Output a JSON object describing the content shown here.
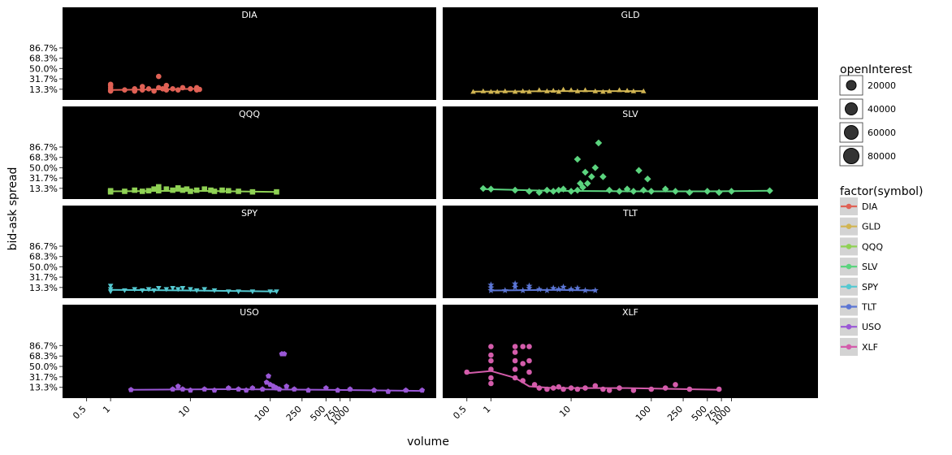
{
  "chart_data": {
    "type": "scatter",
    "xlabel": "volume",
    "ylabel": "bid-ask spread",
    "x_scale": "log10",
    "x_tick_labels": [
      "0.5",
      "1",
      "10",
      "100",
      "250",
      "500",
      "750",
      "1000"
    ],
    "x_tick_values": [
      0.5,
      1,
      10,
      100,
      250,
      500,
      750,
      1000
    ],
    "y_tick_labels": [
      "86.7%",
      "68.3%",
      "50.0%",
      "31.7%",
      "13.3%"
    ],
    "y_tick_values": [
      0.867,
      0.683,
      0.5,
      0.317,
      0.133
    ],
    "ylim": [
      0,
      1.3
    ],
    "legend_size_title": "openInterest",
    "legend_size_entries": [
      "20000",
      "40000",
      "60000",
      "80000"
    ],
    "legend_color_title": "factor(symbol)",
    "panels": [
      {
        "name": "DIA",
        "color": "#e06155",
        "shape": "circle",
        "points": [
          [
            1,
            0.12
          ],
          [
            1,
            0.16
          ],
          [
            1,
            0.2
          ],
          [
            1,
            0.22
          ],
          [
            1,
            0.1
          ],
          [
            1.5,
            0.12
          ],
          [
            2,
            0.14
          ],
          [
            2,
            0.1
          ],
          [
            2.5,
            0.18
          ],
          [
            2.5,
            0.12
          ],
          [
            3,
            0.14
          ],
          [
            3.5,
            0.1
          ],
          [
            4,
            0.36
          ],
          [
            4,
            0.16
          ],
          [
            4.5,
            0.14
          ],
          [
            5,
            0.2
          ],
          [
            5,
            0.12
          ],
          [
            6,
            0.14
          ],
          [
            7,
            0.12
          ],
          [
            8,
            0.16
          ],
          [
            10,
            0.14
          ],
          [
            12,
            0.16
          ],
          [
            12,
            0.12
          ],
          [
            13,
            0.13
          ]
        ],
        "trend": [
          [
            1,
            0.12
          ],
          [
            4,
            0.13
          ],
          [
            13,
            0.14
          ]
        ]
      },
      {
        "name": "GLD",
        "color": "#d1b552",
        "shape": "triangle",
        "points": [
          [
            0.6,
            0.09
          ],
          [
            0.8,
            0.1
          ],
          [
            1,
            0.09
          ],
          [
            1.2,
            0.09
          ],
          [
            1.5,
            0.1
          ],
          [
            2,
            0.09
          ],
          [
            2.5,
            0.1
          ],
          [
            3,
            0.09
          ],
          [
            4,
            0.12
          ],
          [
            5,
            0.1
          ],
          [
            6,
            0.11
          ],
          [
            7,
            0.09
          ],
          [
            8,
            0.13
          ],
          [
            10,
            0.12
          ],
          [
            12,
            0.1
          ],
          [
            15,
            0.12
          ],
          [
            20,
            0.1
          ],
          [
            25,
            0.09
          ],
          [
            30,
            0.1
          ],
          [
            40,
            0.12
          ],
          [
            50,
            0.11
          ],
          [
            60,
            0.1
          ],
          [
            80,
            0.1
          ]
        ],
        "trend": [
          [
            0.6,
            0.09
          ],
          [
            8,
            0.1
          ],
          [
            80,
            0.1
          ]
        ]
      },
      {
        "name": "QQQ",
        "color": "#8fd154",
        "shape": "square",
        "points": [
          [
            1,
            0.07
          ],
          [
            1,
            0.09
          ],
          [
            1.5,
            0.08
          ],
          [
            2,
            0.1
          ],
          [
            2.5,
            0.08
          ],
          [
            3,
            0.09
          ],
          [
            3.5,
            0.12
          ],
          [
            4,
            0.16
          ],
          [
            4,
            0.09
          ],
          [
            5,
            0.12
          ],
          [
            6,
            0.1
          ],
          [
            7,
            0.14
          ],
          [
            8,
            0.1
          ],
          [
            9,
            0.12
          ],
          [
            10,
            0.08
          ],
          [
            12,
            0.1
          ],
          [
            15,
            0.12
          ],
          [
            18,
            0.1
          ],
          [
            20,
            0.08
          ],
          [
            25,
            0.1
          ],
          [
            30,
            0.09
          ],
          [
            40,
            0.08
          ],
          [
            60,
            0.07
          ],
          [
            120,
            0.07
          ]
        ],
        "trend": [
          [
            1,
            0.08
          ],
          [
            10,
            0.09
          ],
          [
            120,
            0.07
          ]
        ]
      },
      {
        "name": "SLV",
        "color": "#5bd47e",
        "shape": "diamond",
        "points": [
          [
            0.8,
            0.13
          ],
          [
            1,
            0.12
          ],
          [
            2,
            0.1
          ],
          [
            3,
            0.08
          ],
          [
            4,
            0.06
          ],
          [
            5,
            0.1
          ],
          [
            6,
            0.08
          ],
          [
            7,
            0.1
          ],
          [
            8,
            0.12
          ],
          [
            10,
            0.08
          ],
          [
            12,
            0.1
          ],
          [
            12,
            0.65
          ],
          [
            13,
            0.22
          ],
          [
            14,
            0.15
          ],
          [
            15,
            0.42
          ],
          [
            16,
            0.22
          ],
          [
            18,
            0.34
          ],
          [
            20,
            0.5
          ],
          [
            22,
            0.94
          ],
          [
            25,
            0.34
          ],
          [
            30,
            0.1
          ],
          [
            40,
            0.08
          ],
          [
            50,
            0.12
          ],
          [
            60,
            0.08
          ],
          [
            70,
            0.45
          ],
          [
            80,
            0.1
          ],
          [
            90,
            0.3
          ],
          [
            100,
            0.08
          ],
          [
            150,
            0.12
          ],
          [
            200,
            0.08
          ],
          [
            300,
            0.06
          ],
          [
            500,
            0.08
          ],
          [
            700,
            0.06
          ],
          [
            1000,
            0.08
          ],
          [
            3000,
            0.09
          ]
        ],
        "trend": [
          [
            0.8,
            0.12
          ],
          [
            5,
            0.09
          ],
          [
            50,
            0.08
          ],
          [
            500,
            0.08
          ],
          [
            3000,
            0.09
          ]
        ]
      },
      {
        "name": "SPY",
        "color": "#54c9d1",
        "shape": "triangle-down",
        "points": [
          [
            1,
            0.1
          ],
          [
            1,
            0.16
          ],
          [
            1,
            0.06
          ],
          [
            1.5,
            0.08
          ],
          [
            2,
            0.1
          ],
          [
            2.5,
            0.08
          ],
          [
            3,
            0.1
          ],
          [
            3.5,
            0.08
          ],
          [
            4,
            0.12
          ],
          [
            5,
            0.1
          ],
          [
            6,
            0.12
          ],
          [
            7,
            0.1
          ],
          [
            8,
            0.12
          ],
          [
            10,
            0.1
          ],
          [
            12,
            0.08
          ],
          [
            15,
            0.1
          ],
          [
            20,
            0.08
          ],
          [
            30,
            0.06
          ],
          [
            40,
            0.06
          ],
          [
            60,
            0.06
          ],
          [
            100,
            0.06
          ],
          [
            120,
            0.06
          ]
        ],
        "trend": [
          [
            1,
            0.09
          ],
          [
            10,
            0.08
          ],
          [
            120,
            0.06
          ]
        ]
      },
      {
        "name": "TLT",
        "color": "#5b75d4",
        "shape": "star",
        "points": [
          [
            1,
            0.08
          ],
          [
            1,
            0.13
          ],
          [
            1,
            0.18
          ],
          [
            1.5,
            0.08
          ],
          [
            2,
            0.14
          ],
          [
            2,
            0.2
          ],
          [
            2.5,
            0.08
          ],
          [
            3,
            0.12
          ],
          [
            3,
            0.16
          ],
          [
            4,
            0.1
          ],
          [
            5,
            0.08
          ],
          [
            6,
            0.12
          ],
          [
            7,
            0.1
          ],
          [
            8,
            0.14
          ],
          [
            10,
            0.1
          ],
          [
            12,
            0.12
          ],
          [
            15,
            0.08
          ],
          [
            20,
            0.08
          ]
        ],
        "trend": [
          [
            1,
            0.08
          ],
          [
            6,
            0.09
          ],
          [
            20,
            0.08
          ]
        ]
      },
      {
        "name": "USO",
        "color": "#9a57d6",
        "shape": "pentagon",
        "points": [
          [
            1.8,
            0.09
          ],
          [
            6,
            0.1
          ],
          [
            7,
            0.15
          ],
          [
            8,
            0.1
          ],
          [
            10,
            0.08
          ],
          [
            15,
            0.1
          ],
          [
            20,
            0.08
          ],
          [
            30,
            0.12
          ],
          [
            40,
            0.1
          ],
          [
            50,
            0.08
          ],
          [
            60,
            0.12
          ],
          [
            80,
            0.1
          ],
          [
            90,
            0.22
          ],
          [
            95,
            0.33
          ],
          [
            100,
            0.18
          ],
          [
            110,
            0.15
          ],
          [
            120,
            0.12
          ],
          [
            130,
            0.1
          ],
          [
            140,
            0.72
          ],
          [
            150,
            0.72
          ],
          [
            160,
            0.15
          ],
          [
            200,
            0.1
          ],
          [
            300,
            0.08
          ],
          [
            500,
            0.12
          ],
          [
            700,
            0.08
          ],
          [
            1000,
            0.1
          ],
          [
            2000,
            0.08
          ],
          [
            3000,
            0.06
          ],
          [
            5000,
            0.08
          ],
          [
            8000,
            0.08
          ]
        ],
        "trend": [
          [
            1.8,
            0.09
          ],
          [
            30,
            0.1
          ],
          [
            500,
            0.09
          ],
          [
            8000,
            0.07
          ]
        ]
      },
      {
        "name": "XLF",
        "color": "#d45cab",
        "shape": "circle",
        "points": [
          [
            0.5,
            0.4
          ],
          [
            1,
            0.85
          ],
          [
            1,
            0.7
          ],
          [
            1,
            0.6
          ],
          [
            1,
            0.45
          ],
          [
            1,
            0.3
          ],
          [
            1,
            0.2
          ],
          [
            2,
            0.85
          ],
          [
            2,
            0.75
          ],
          [
            2,
            0.6
          ],
          [
            2,
            0.45
          ],
          [
            2,
            0.3
          ],
          [
            2.5,
            0.85
          ],
          [
            2.5,
            0.55
          ],
          [
            2.5,
            0.25
          ],
          [
            3,
            0.85
          ],
          [
            3,
            0.6
          ],
          [
            3,
            0.4
          ],
          [
            3.5,
            0.18
          ],
          [
            4,
            0.12
          ],
          [
            5,
            0.1
          ],
          [
            6,
            0.12
          ],
          [
            7,
            0.14
          ],
          [
            8,
            0.1
          ],
          [
            10,
            0.12
          ],
          [
            12,
            0.1
          ],
          [
            15,
            0.12
          ],
          [
            20,
            0.16
          ],
          [
            25,
            0.1
          ],
          [
            30,
            0.08
          ],
          [
            40,
            0.12
          ],
          [
            60,
            0.08
          ],
          [
            100,
            0.1
          ],
          [
            150,
            0.12
          ],
          [
            200,
            0.18
          ],
          [
            300,
            0.1
          ],
          [
            700,
            0.1
          ]
        ],
        "trend": [
          [
            0.5,
            0.38
          ],
          [
            1,
            0.42
          ],
          [
            2,
            0.3
          ],
          [
            3,
            0.15
          ],
          [
            6,
            0.12
          ],
          [
            50,
            0.12
          ],
          [
            750,
            0.09
          ]
        ]
      }
    ]
  }
}
